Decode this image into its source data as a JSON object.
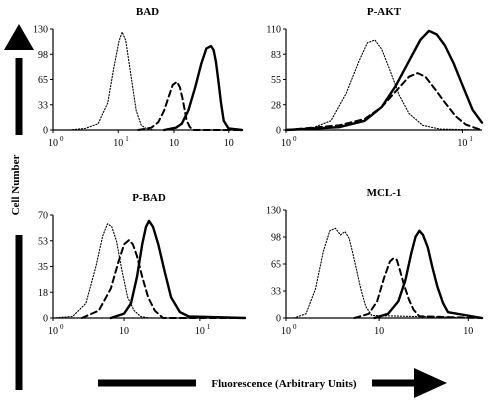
{
  "figure": {
    "y_axis_label": "Cell Number",
    "x_axis_label": "Fluorescence (Arbitrary Units)"
  },
  "chart_data": [
    {
      "type": "line",
      "title": "BAD",
      "x_scale": "log",
      "xlim": [
        1,
        100
      ],
      "ylim": [
        0,
        130
      ],
      "yticks": [
        "0",
        "33",
        "65",
        "98",
        "130"
      ],
      "xticks": [
        "10",
        "10",
        "10",
        "10"
      ],
      "xtick_exponents": [
        "0",
        "1",
        "",
        ""
      ],
      "series": [
        {
          "style": "dotted",
          "x": [
            1.5,
            2.2,
            3.0,
            3.8,
            4.4,
            5.0,
            5.4,
            5.9,
            6.6,
            7.6,
            8.6,
            10.0,
            12.0,
            100
          ],
          "y": [
            0,
            2,
            8,
            35,
            80,
            115,
            126,
            115,
            75,
            25,
            6,
            1,
            0,
            0
          ]
        },
        {
          "style": "dashed",
          "x": [
            8,
            11,
            13,
            15,
            17,
            18.5,
            20.5,
            22,
            23.5,
            26,
            28,
            30,
            100
          ],
          "y": [
            0,
            3,
            10,
            25,
            45,
            58,
            62,
            55,
            40,
            12,
            4,
            0,
            0
          ]
        },
        {
          "style": "solid",
          "x": [
            15,
            20,
            23,
            27,
            32,
            37,
            42,
            47,
            50,
            53,
            56,
            60,
            64,
            72,
            100
          ],
          "y": [
            0,
            3,
            8,
            25,
            55,
            85,
            105,
            108,
            103,
            88,
            65,
            35,
            12,
            2,
            0
          ]
        }
      ]
    },
    {
      "type": "line",
      "title": "P-AKT",
      "x_scale": "log",
      "xlim": [
        1,
        13
      ],
      "ylim": [
        0,
        110
      ],
      "yticks": [
        "0",
        "28",
        "55",
        "83",
        "110"
      ],
      "xticks": [
        "10",
        "10"
      ],
      "xtick_exponents": [
        "0",
        "1"
      ],
      "series": [
        {
          "style": "dotted",
          "x": [
            1,
            1.4,
            1.8,
            2.2,
            2.6,
            2.9,
            3.2,
            3.5,
            3.9,
            4.4,
            5.0,
            6.0,
            7.5,
            13
          ],
          "y": [
            0,
            2,
            10,
            40,
            75,
            95,
            98,
            88,
            65,
            38,
            18,
            5,
            1,
            0
          ]
        },
        {
          "style": "dashed",
          "x": [
            1,
            2.0,
            2.8,
            3.5,
            4.2,
            5.0,
            5.6,
            6.2,
            7.0,
            8.0,
            9.2,
            10.5,
            12,
            13
          ],
          "y": [
            0,
            5,
            12,
            25,
            42,
            58,
            62,
            58,
            45,
            30,
            15,
            6,
            2,
            0
          ]
        },
        {
          "style": "solid",
          "x": [
            1,
            2.0,
            2.8,
            3.5,
            4.2,
            5.0,
            5.8,
            6.5,
            7.2,
            8.0,
            9.0,
            10.0,
            11.5,
            13
          ],
          "y": [
            0,
            3,
            10,
            25,
            48,
            75,
            98,
            108,
            104,
            92,
            72,
            50,
            22,
            8
          ]
        }
      ]
    },
    {
      "type": "line",
      "title": "P-BAD",
      "x_scale": "log",
      "xlim": [
        1,
        100
      ],
      "ylim": [
        0,
        70
      ],
      "yticks": [
        "0",
        "18",
        "35",
        "53",
        "70"
      ],
      "xticks": [
        "10",
        "10",
        "10"
      ],
      "xtick_exponents": [
        "0",
        "",
        "1"
      ],
      "series": [
        {
          "style": "dotted",
          "x": [
            1,
            1.6,
            2.2,
            2.8,
            3.3,
            3.7,
            4.1,
            4.6,
            5.2,
            6.0,
            7.0,
            8.2,
            10.0,
            100
          ],
          "y": [
            0,
            1,
            10,
            35,
            56,
            64,
            62,
            52,
            33,
            14,
            5,
            1,
            0,
            0
          ]
        },
        {
          "style": "dashed",
          "x": [
            2,
            3.0,
            4.0,
            4.8,
            5.5,
            6.2,
            6.8,
            7.5,
            8.5,
            9.8,
            11.5,
            14,
            100
          ],
          "y": [
            0,
            5,
            20,
            38,
            50,
            53,
            50,
            42,
            28,
            14,
            5,
            0,
            0
          ]
        },
        {
          "style": "solid",
          "x": [
            4,
            5.5,
            6.5,
            7.5,
            8.5,
            9.3,
            10.0,
            11.0,
            12.5,
            14.5,
            17.0,
            21,
            26,
            100
          ],
          "y": [
            0,
            3,
            10,
            28,
            50,
            62,
            66,
            62,
            50,
            32,
            14,
            4,
            1,
            0
          ]
        }
      ]
    },
    {
      "type": "line",
      "title": "MCL-1",
      "x_scale": "log",
      "xlim": [
        1,
        100
      ],
      "ylim": [
        0,
        130
      ],
      "yticks": [
        "0",
        "33",
        "65",
        "98",
        "130"
      ],
      "xticks": [
        "10",
        "10",
        "10"
      ],
      "xtick_exponents": [
        "0",
        "",
        ""
      ],
      "series": [
        {
          "style": "dotted",
          "x": [
            1.2,
            1.6,
            2.0,
            2.4,
            2.8,
            3.2,
            3.6,
            4.0,
            4.4,
            4.8,
            5.2,
            5.8,
            6.5,
            7.5,
            100
          ],
          "y": [
            0,
            5,
            35,
            80,
            105,
            108,
            100,
            104,
            96,
            78,
            60,
            35,
            14,
            3,
            0
          ]
        },
        {
          "style": "dashed",
          "x": [
            5,
            7,
            8.5,
            10,
            11.5,
            12.5,
            13.5,
            14.5,
            16,
            18,
            20,
            23,
            100
          ],
          "y": [
            0,
            5,
            20,
            48,
            68,
            72,
            70,
            58,
            40,
            22,
            10,
            2,
            0
          ]
        },
        {
          "style": "solid",
          "x": [
            8,
            11,
            14,
            16.5,
            19,
            21,
            23,
            25,
            28,
            31,
            35,
            40,
            45,
            100
          ],
          "y": [
            0,
            5,
            20,
            45,
            78,
            98,
            105,
            100,
            85,
            62,
            38,
            18,
            7,
            0
          ]
        }
      ]
    }
  ]
}
